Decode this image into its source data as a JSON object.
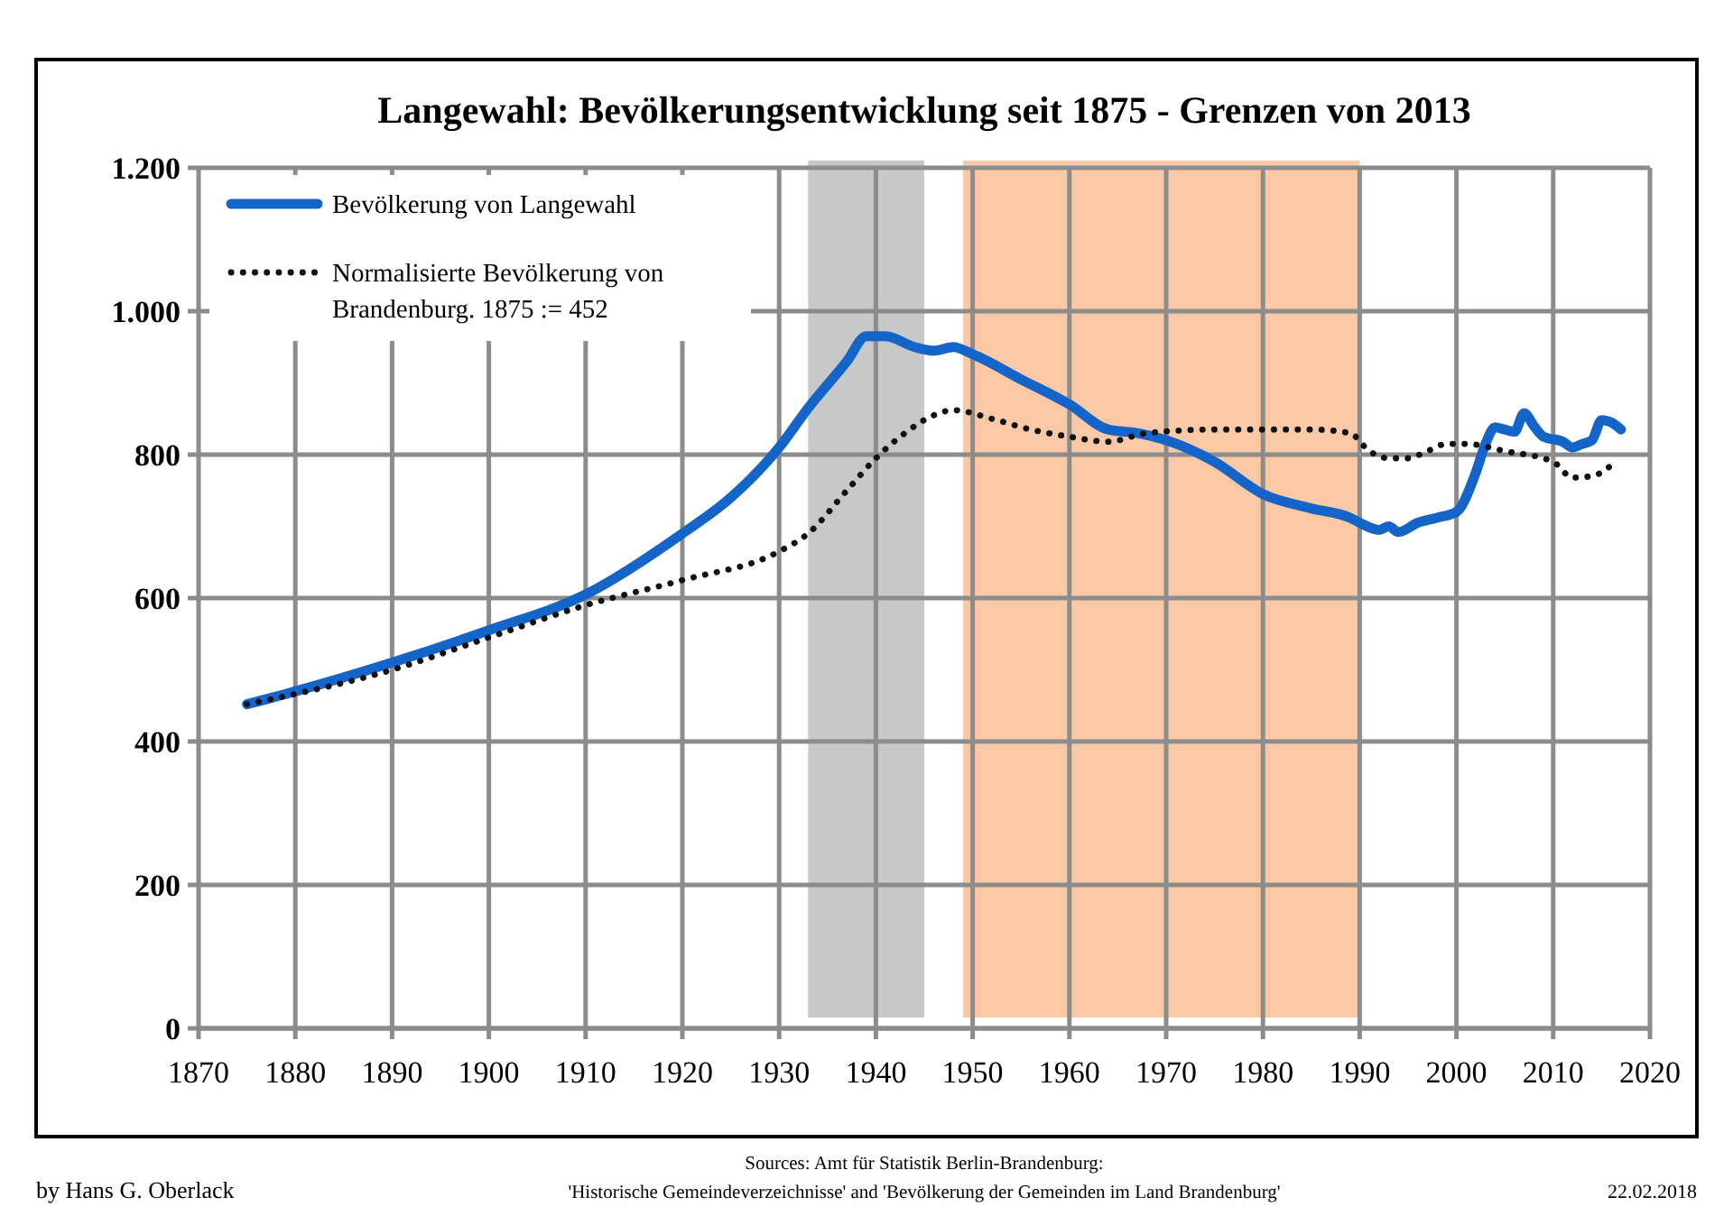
{
  "chart_data": {
    "type": "line",
    "title": "Langewahl: Bevölkerungsentwicklung seit 1875 - Grenzen von 2013",
    "xlim": [
      1870,
      2020
    ],
    "xticks": [
      1870,
      1880,
      1890,
      1900,
      1910,
      1920,
      1930,
      1940,
      1950,
      1960,
      1970,
      1980,
      1990,
      2000,
      2010,
      2020
    ],
    "ylim": [
      0,
      1200
    ],
    "yticks": [
      0,
      200,
      400,
      600,
      800,
      {
        "value": 1000,
        "label": "1.000"
      },
      {
        "value": 1200,
        "label": "1.200"
      }
    ],
    "grid": true,
    "legend": "top left",
    "series": [
      {
        "name": "Bevölkerung von Langewahl",
        "color": "#1565c8",
        "line_style": "solid",
        "x": [
          1875,
          1880,
          1890,
          1900,
          1910,
          1920,
          1925,
          1930,
          1933,
          1937,
          1939,
          1941,
          1944,
          1946,
          1948,
          1950,
          1955,
          1960,
          1964,
          1967,
          1970,
          1975,
          1980,
          1985,
          1989,
          1990,
          1992,
          1993,
          1994,
          1996,
          1998,
          2000,
          2002,
          2003,
          2004,
          2005,
          2006,
          2007,
          2008,
          2009,
          2011,
          2012,
          2013,
          2014,
          2015,
          2016,
          2017
        ],
        "values": [
          452,
          470,
          510,
          555,
          605,
          690,
          740,
          810,
          865,
          930,
          965,
          965,
          950,
          945,
          950,
          940,
          905,
          870,
          835,
          830,
          820,
          790,
          745,
          725,
          712,
          705,
          695,
          700,
          692,
          705,
          712,
          720,
          775,
          815,
          838,
          835,
          832,
          858,
          840,
          825,
          818,
          810,
          815,
          820,
          848,
          845,
          835
        ]
      },
      {
        "name": "Normalisierte Bevölkerung von Brandenburg. 1875 := 452",
        "color": "#111111",
        "line_style": "dotted",
        "x": [
          1875,
          1890,
          1900,
          1910,
          1920,
          1930,
          1933,
          1937,
          1940,
          1943,
          1946,
          1948,
          1952,
          1956,
          1960,
          1964,
          1968,
          1975,
          1985,
          1989,
          1991,
          1993,
          1995,
          1997,
          1999,
          2001,
          2005,
          2010,
          2012,
          2014,
          2016
        ],
        "values": [
          452,
          500,
          545,
          590,
          625,
          665,
          690,
          750,
          795,
          830,
          855,
          862,
          850,
          835,
          825,
          818,
          830,
          835,
          835,
          830,
          805,
          795,
          795,
          805,
          815,
          815,
          805,
          790,
          768,
          770,
          785
        ]
      }
    ],
    "bands": [
      {
        "axis": "x",
        "from": 1933,
        "to": 1945,
        "color": "#c8c8c8"
      },
      {
        "axis": "x",
        "from": 1949,
        "to": 1990,
        "color": "#fbc9a6"
      }
    ],
    "annotations": [
      "by Hans G. Oberlack",
      "Sources: Amt für Statistik Berlin-Brandenburg:",
      "'Historische Gemeindeverzeichnisse' and 'Bevölkerung der Gemeinden im Land Brandenburg'",
      "22.02.2018"
    ]
  }
}
